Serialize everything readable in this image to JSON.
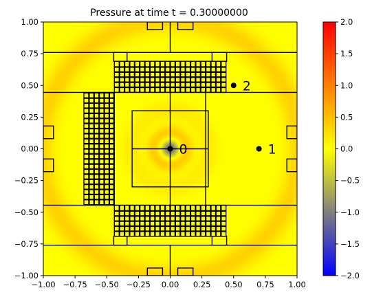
{
  "chart_data": {
    "type": "heatmap",
    "title": "Pressure at time t =      0.30000000",
    "xlim": [
      -1.0,
      1.0
    ],
    "ylim": [
      -1.0,
      1.0
    ],
    "xticks": [
      -1.0,
      -0.75,
      -0.5,
      -0.25,
      0.0,
      0.25,
      0.5,
      0.75,
      1.0
    ],
    "xtick_labels": [
      "−1.00",
      "−0.75",
      "−0.50",
      "−0.25",
      "0.00",
      "0.25",
      "0.50",
      "0.75",
      "1.00"
    ],
    "yticks": [
      -1.0,
      -0.75,
      -0.5,
      -0.25,
      0.0,
      0.25,
      0.5,
      0.75,
      1.0
    ],
    "ytick_labels": [
      "−1.00",
      "−0.75",
      "−0.50",
      "−0.25",
      "0.00",
      "0.25",
      "0.50",
      "0.75",
      "1.00"
    ],
    "colorbar": {
      "range": [
        -2.0,
        2.0
      ],
      "ticks": [
        -2.0,
        -1.5,
        -1.0,
        -0.5,
        0.0,
        0.5,
        1.0,
        1.5,
        2.0
      ],
      "tick_labels": [
        "−2.0",
        "−1.5",
        "−1.0",
        "−0.5",
        "0.0",
        "0.5",
        "1.0",
        "1.5",
        "2.0"
      ],
      "colors": [
        "#0000ff",
        "#ffff00",
        "#ff0000"
      ]
    },
    "field": {
      "background": 0.0,
      "source": [
        0.0,
        0.0
      ],
      "wave_radius": 1.02,
      "wave_width": 0.1,
      "wave_amplitude": 0.35,
      "center_min": -1.3,
      "center_ring_radius": 0.13,
      "center_ring_value": 0.38
    },
    "probes": [
      {
        "label": "0",
        "x": 0.0,
        "y": 0.0
      },
      {
        "label": "1",
        "x": 0.7,
        "y": 0.0
      },
      {
        "label": "2",
        "x": 0.5,
        "y": 0.5
      }
    ]
  }
}
